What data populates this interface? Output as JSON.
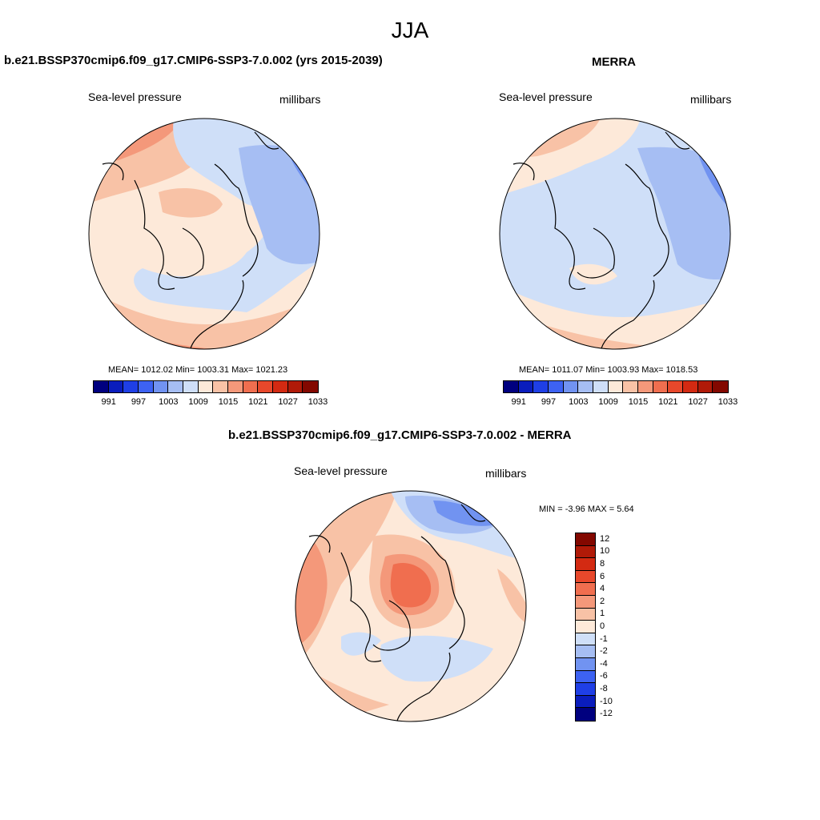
{
  "title": "JJA",
  "panels": {
    "left": {
      "title": "b.e21.BSSP370cmip6.f09_g17.CMIP6-SSP3-7.0.002 (yrs 2015-2039)",
      "variable": "Sea-level pressure",
      "units": "millibars",
      "stats": "MEAN= 1012.02  Min= 1003.31  Max= 1021.23"
    },
    "right": {
      "title": "MERRA",
      "variable": "Sea-level pressure",
      "units": "millibars",
      "stats": "MEAN= 1011.07  Min= 1003.93  Max= 1018.53"
    },
    "diff": {
      "title": "b.e21.BSSP370cmip6.f09_g17.CMIP6-SSP3-7.0.002 - MERRA",
      "variable": "Sea-level pressure",
      "units": "millibars",
      "stats": "MIN =  -3.96 MAX =   5.64"
    }
  },
  "colorbar_abs": {
    "labels": [
      "991",
      "997",
      "1003",
      "1009",
      "1015",
      "1021",
      "1027",
      "1033"
    ],
    "colors": [
      "#00007f",
      "#0a1dbd",
      "#1f3fe6",
      "#3d62f2",
      "#7193f1",
      "#a6bef3",
      "#cfdff8",
      "#fde9d9",
      "#f8c2a6",
      "#f4987a",
      "#f06e4f",
      "#e8482b",
      "#d32a12",
      "#b01a08",
      "#830800"
    ]
  },
  "colorbar_diff": {
    "labels": [
      "12",
      "10",
      "8",
      "6",
      "4",
      "2",
      "1",
      "0",
      "-1",
      "-2",
      "-4",
      "-6",
      "-8",
      "-10",
      "-12"
    ],
    "colors": [
      "#830800",
      "#b01a08",
      "#d32a12",
      "#e8482b",
      "#f06e4f",
      "#f4987a",
      "#f8c2a6",
      "#fde9d9",
      "#cfdff8",
      "#a6bef3",
      "#7193f1",
      "#3d62f2",
      "#1f3fe6",
      "#0a1dbd",
      "#00007f"
    ]
  }
}
